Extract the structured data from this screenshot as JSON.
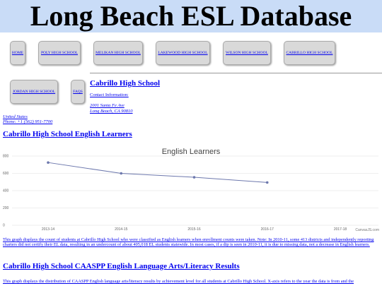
{
  "header": {
    "title": "Long Beach ESL Database"
  },
  "nav": [
    "HOME",
    "POLY HIGH SCHOOL",
    "MELIKAN HIGH SCHOOL",
    "LAKEWOOD HIGH SCHOOL",
    "WILSON HIGH SCHOOL",
    "CABRILLO HIGH SCHOOL",
    "JORDAN HIGH SCHOOL",
    "FAQS"
  ],
  "school": {
    "name": "Cabrillo High School",
    "contact_label": "Contact Information:",
    "address_1": "2001 Santa Fe Ave",
    "address_2": "Long Beach, CA 90810",
    "country": "United States",
    "phone": "Phone: +1 (562) 951-7700"
  },
  "sections": [
    {
      "heading": "Cabrillo High School English Learners",
      "text": "This graph displays the count of students at Cabrillo High School who were classified as English learners when enrollment counts were taken. Note: In 2010-11, some 413 districts and independently reporting charters did not certify their EL data, resulting in an undercount of about 405,018 EL students statewide. In most cases, if a dip is seen in 2010-11, it is due to missing data, not a decrease in English learners."
    },
    {
      "heading": "Cabrillo High School CAASPP English Language Arts/Literacy Results",
      "text": "This graph displays the distribution of CAASPP English language arts/literacy results by achievement level for all students at Cabrillo High School. X-axis refers to the year the data is from and the"
    }
  ],
  "chart_data": {
    "type": "line",
    "title": "English Learners",
    "credit": "CanvasJS.com",
    "categories": [
      "2013-14",
      "2014-15",
      "2015-16",
      "2016-17",
      "2017-18"
    ],
    "series": [
      {
        "name": "English Learners",
        "color": "#6d78ad",
        "values": [
          725,
          600,
          555,
          495,
          null
        ]
      }
    ],
    "ylim": [
      0,
      800
    ],
    "yticks": [
      0,
      200,
      400,
      600,
      800
    ],
    "grid": true
  }
}
